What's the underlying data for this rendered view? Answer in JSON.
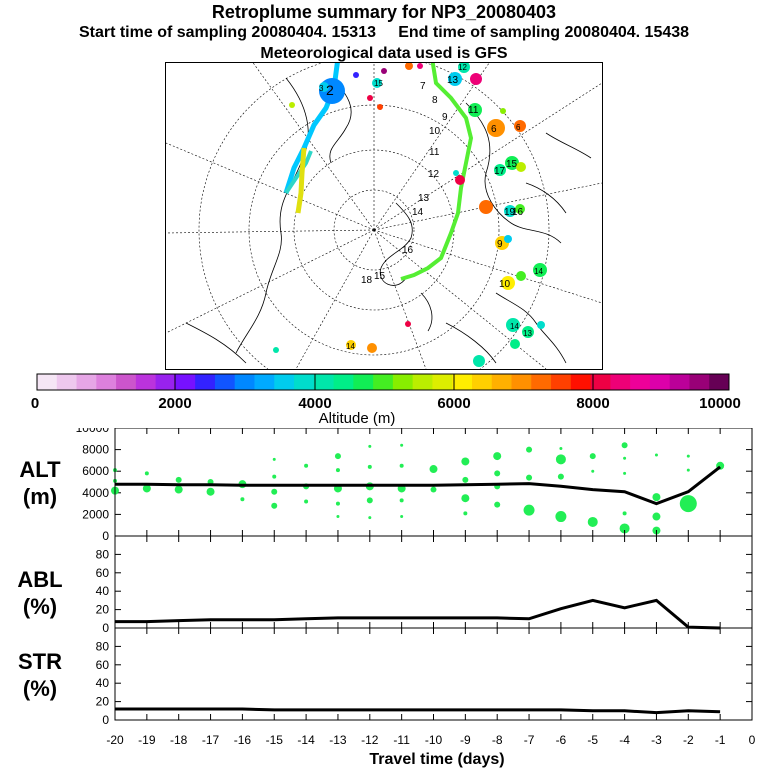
{
  "header": {
    "title": "Retroplume summary for NP3_20080403",
    "start_label": "Start time of sampling 20080404. 15313",
    "end_label": "End time of sampling 20080404. 15438",
    "met_label": "Meteorological data used is GFS"
  },
  "colorbar": {
    "ticks": [
      "0",
      "2000",
      "4000",
      "6000",
      "8000",
      "10000"
    ],
    "label": "Altitude (m)",
    "colors": [
      "#f5e6f5",
      "#eec8ee",
      "#e6a6e6",
      "#dd80dd",
      "#cc55cc",
      "#bb33dd",
      "#9922ee",
      "#7711ff",
      "#3322ff",
      "#1155ff",
      "#0088ff",
      "#00aaff",
      "#00ccee",
      "#00ddcc",
      "#00e6aa",
      "#00ee88",
      "#11ee55",
      "#44ee22",
      "#88ee00",
      "#bbee00",
      "#ddee00",
      "#ffee00",
      "#ffd000",
      "#ffb000",
      "#ff9000",
      "#ff6a00",
      "#ff4000",
      "#ff1000",
      "#ee0044",
      "#ee0077",
      "#ee0099",
      "#dd00aa",
      "#bb0099",
      "#990077",
      "#660055"
    ]
  },
  "map": {
    "day_labels": [
      {
        "text": "7",
        "color": "#000000"
      },
      {
        "text": "8",
        "color": "#000000"
      },
      {
        "text": "9",
        "color": "#000000"
      },
      {
        "text": "10",
        "color": "#000000"
      },
      {
        "text": "11",
        "color": "#000000"
      },
      {
        "text": "12",
        "color": "#000000"
      },
      {
        "text": "13",
        "color": "#000000"
      },
      {
        "text": "14",
        "color": "#000000"
      },
      {
        "text": "15",
        "color": "#000000"
      },
      {
        "text": "16",
        "color": "#000000"
      },
      {
        "text": "18",
        "color": "#000000"
      },
      {
        "text": "12",
        "color": "#000000"
      },
      {
        "text": "13",
        "color": "#000000"
      },
      {
        "text": "6",
        "color": "#000000"
      },
      {
        "text": "6",
        "color": "#000000"
      },
      {
        "text": "9",
        "color": "#000000"
      },
      {
        "text": "10",
        "color": "#000000"
      },
      {
        "text": "11",
        "color": "#000000"
      },
      {
        "text": "14",
        "color": "#000000"
      },
      {
        "text": "15",
        "color": "#000000"
      },
      {
        "text": "16",
        "color": "#000000"
      },
      {
        "text": "17",
        "color": "#000000"
      },
      {
        "text": "18",
        "color": "#000000"
      },
      {
        "text": "19",
        "color": "#000000"
      },
      {
        "text": "2",
        "color": "#000000"
      },
      {
        "text": "3",
        "color": "#000000"
      },
      {
        "text": "14",
        "color": "#000000"
      },
      {
        "text": "14",
        "color": "#000000"
      },
      {
        "text": "13",
        "color": "#000000"
      },
      {
        "text": "15",
        "color": "#000000"
      }
    ]
  },
  "chart_data": [
    {
      "name": "ALT",
      "type": "line+bubble",
      "ylabel_line1": "ALT",
      "ylabel_line2": "(m)",
      "ylim": [
        0,
        10000
      ],
      "yticks": [
        "0",
        "2000",
        "4000",
        "6000",
        "8000",
        "10000"
      ],
      "x": [
        -20,
        -19,
        -18,
        -17,
        -16,
        -15,
        -14,
        -13,
        -12,
        -11,
        -10,
        -9,
        -8,
        -7,
        -6,
        -5,
        -4,
        -3,
        -2,
        -1
      ],
      "values": [
        4800,
        4800,
        4750,
        4750,
        4700,
        4700,
        4700,
        4700,
        4700,
        4700,
        4700,
        4750,
        4800,
        4850,
        4600,
        4300,
        4100,
        3000,
        4100,
        6400
      ],
      "clusters": [
        {
          "x": -20,
          "pts": [
            [
              6100,
              2
            ],
            [
              4200,
              4
            ],
            [
              5100,
              2
            ]
          ]
        },
        {
          "x": -19,
          "pts": [
            [
              5800,
              2
            ],
            [
              4400,
              4
            ]
          ]
        },
        {
          "x": -18,
          "pts": [
            [
              5200,
              3
            ],
            [
              4300,
              4
            ]
          ]
        },
        {
          "x": -17,
          "pts": [
            [
              5000,
              3
            ],
            [
              4100,
              4
            ]
          ]
        },
        {
          "x": -16,
          "pts": [
            [
              4800,
              4
            ],
            [
              3400,
              2
            ]
          ]
        },
        {
          "x": -15,
          "pts": [
            [
              7100,
              1.5
            ],
            [
              5500,
              2
            ],
            [
              4100,
              3
            ],
            [
              2800,
              3
            ]
          ]
        },
        {
          "x": -14,
          "pts": [
            [
              6500,
              2
            ],
            [
              4600,
              3
            ],
            [
              3200,
              2
            ]
          ]
        },
        {
          "x": -13,
          "pts": [
            [
              7400,
              3
            ],
            [
              6100,
              2
            ],
            [
              4400,
              4
            ],
            [
              3000,
              2
            ],
            [
              1800,
              1.5
            ]
          ]
        },
        {
          "x": -12,
          "pts": [
            [
              8300,
              1.5
            ],
            [
              6400,
              2
            ],
            [
              4600,
              4
            ],
            [
              3300,
              3
            ],
            [
              1700,
              1.5
            ]
          ]
        },
        {
          "x": -11,
          "pts": [
            [
              8400,
              1.5
            ],
            [
              6500,
              2
            ],
            [
              4400,
              4
            ],
            [
              3300,
              2
            ],
            [
              1800,
              1.5
            ]
          ]
        },
        {
          "x": -10,
          "pts": [
            [
              6200,
              4
            ],
            [
              4300,
              3
            ]
          ]
        },
        {
          "x": -9,
          "pts": [
            [
              6900,
              4
            ],
            [
              5200,
              3
            ],
            [
              3500,
              4
            ],
            [
              2100,
              2
            ]
          ]
        },
        {
          "x": -8,
          "pts": [
            [
              7400,
              4
            ],
            [
              5800,
              3
            ],
            [
              4600,
              3
            ],
            [
              2900,
              3
            ]
          ]
        },
        {
          "x": -7,
          "pts": [
            [
              8000,
              3
            ],
            [
              5400,
              3
            ],
            [
              2400,
              5.5
            ]
          ]
        },
        {
          "x": -6,
          "pts": [
            [
              8100,
              1.5
            ],
            [
              7100,
              5
            ],
            [
              5500,
              3
            ],
            [
              1800,
              5.5
            ]
          ]
        },
        {
          "x": -5,
          "pts": [
            [
              7400,
              3
            ],
            [
              6000,
              1.5
            ],
            [
              1300,
              5
            ]
          ]
        },
        {
          "x": -4,
          "pts": [
            [
              8400,
              3
            ],
            [
              7200,
              1.5
            ],
            [
              5800,
              1.5
            ],
            [
              2100,
              2
            ],
            [
              700,
              5
            ]
          ]
        },
        {
          "x": -3,
          "pts": [
            [
              7500,
              1.5
            ],
            [
              3600,
              4
            ],
            [
              1800,
              4
            ],
            [
              500,
              4
            ]
          ]
        },
        {
          "x": -2,
          "pts": [
            [
              7400,
              1.5
            ],
            [
              6100,
              1.5
            ],
            [
              3000,
              8.5
            ]
          ]
        },
        {
          "x": -1,
          "pts": [
            [
              6500,
              4
            ]
          ]
        }
      ]
    },
    {
      "name": "ABL",
      "type": "line",
      "ylabel_line1": "ABL",
      "ylabel_line2": "(%)",
      "ylim": [
        0,
        100
      ],
      "yticks": [
        "0",
        "20",
        "40",
        "60",
        "80"
      ],
      "x": [
        -20,
        -19,
        -18,
        -17,
        -16,
        -15,
        -14,
        -13,
        -12,
        -11,
        -10,
        -9,
        -8,
        -7,
        -6,
        -5,
        -4,
        -3,
        -2,
        -1
      ],
      "values": [
        7,
        7,
        8,
        9,
        9,
        9,
        10,
        11,
        11,
        11,
        11,
        11,
        11,
        10,
        21,
        30,
        22,
        30,
        1,
        0
      ]
    },
    {
      "name": "STR",
      "type": "line",
      "ylabel_line1": "STR",
      "ylabel_line2": "(%)",
      "ylim": [
        0,
        100
      ],
      "yticks": [
        "0",
        "20",
        "40",
        "60",
        "80"
      ],
      "x": [
        -20,
        -19,
        -18,
        -17,
        -16,
        -15,
        -14,
        -13,
        -12,
        -11,
        -10,
        -9,
        -8,
        -7,
        -6,
        -5,
        -4,
        -3,
        -2,
        -1
      ],
      "values": [
        12,
        12,
        12,
        12,
        12,
        11,
        11,
        11,
        11,
        11,
        11,
        11,
        11,
        11,
        11,
        10,
        10,
        8,
        10,
        9
      ]
    }
  ],
  "xaxis": {
    "label": "Travel time (days)",
    "ticks": [
      "-20",
      "-19",
      "-18",
      "-17",
      "-16",
      "-15",
      "-14",
      "-13",
      "-12",
      "-11",
      "-10",
      "-9",
      "-8",
      "-7",
      "-6",
      "-5",
      "-4",
      "-3",
      "-2",
      "-1",
      "0"
    ],
    "xlim": [
      -20,
      0
    ]
  }
}
